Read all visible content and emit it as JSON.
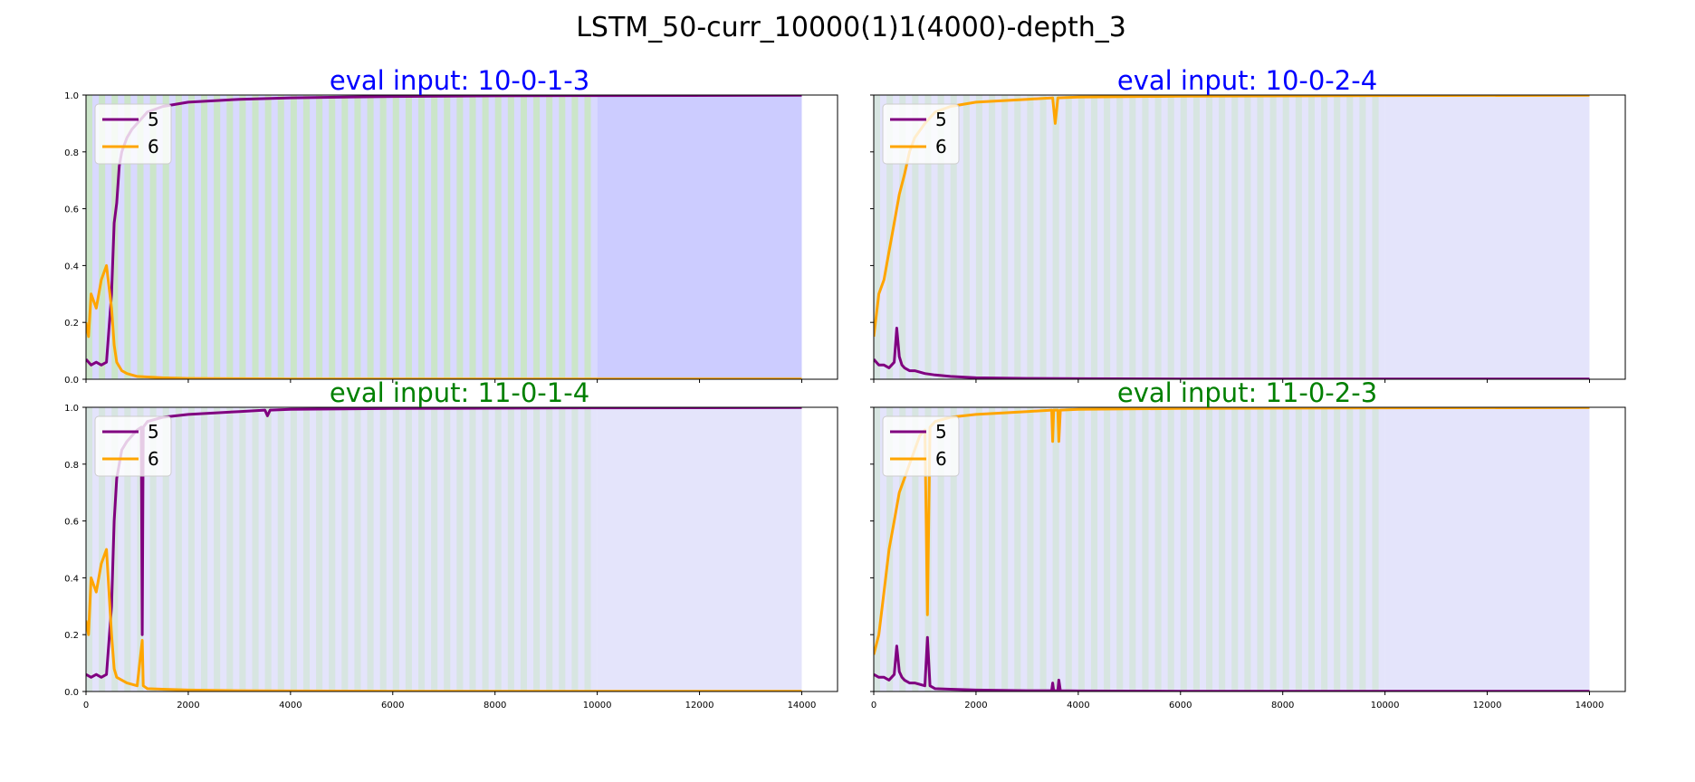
{
  "figure": {
    "suptitle": "LSTM_50-curr_10000(1)1(4000)-depth_3"
  },
  "colors": {
    "series_5": "#800080",
    "series_6": "#FFA500",
    "title_blue": "#0000FF",
    "title_green": "#008000",
    "band_green": "#C8E6C0",
    "band_blue_light": "#E4E4FB",
    "band_blue_strong": "#CCCCFF",
    "band_blue_plain": "#E4E4FB"
  },
  "chart_data": [
    {
      "type": "line",
      "title": "eval input: 10-0-1-3",
      "title_color": "blue",
      "xlim": [
        0,
        14700
      ],
      "ylim": [
        0,
        1.0
      ],
      "x_ticks": [],
      "y_ticks": [
        "0.0",
        "0.2",
        "0.4",
        "0.6",
        "0.8",
        "1.0"
      ],
      "legend_position": "upper left",
      "background": "strong",
      "series": [
        {
          "name": "5",
          "color": "purple",
          "x": [
            0,
            100,
            200,
            300,
            400,
            500,
            550,
            600,
            650,
            700,
            800,
            900,
            1000,
            1100,
            1200,
            1500,
            2000,
            3000,
            4000,
            6000,
            8000,
            10000,
            14000
          ],
          "y": [
            0.07,
            0.05,
            0.06,
            0.05,
            0.06,
            0.3,
            0.55,
            0.62,
            0.75,
            0.8,
            0.85,
            0.88,
            0.9,
            0.92,
            0.94,
            0.96,
            0.975,
            0.985,
            0.99,
            0.995,
            0.997,
            0.998,
            0.999
          ]
        },
        {
          "name": "6",
          "color": "orange",
          "x": [
            0,
            50,
            100,
            200,
            300,
            400,
            500,
            550,
            600,
            700,
            800,
            1000,
            1200,
            1500,
            2000,
            3000,
            4000,
            6000,
            10000,
            14000
          ],
          "y": [
            0.2,
            0.15,
            0.3,
            0.25,
            0.35,
            0.4,
            0.25,
            0.12,
            0.06,
            0.03,
            0.02,
            0.01,
            0.008,
            0.005,
            0.003,
            0.002,
            0.001,
            0.001,
            0.001,
            0.001
          ]
        }
      ]
    },
    {
      "type": "line",
      "title": "eval input: 10-0-2-4",
      "title_color": "blue",
      "xlim": [
        0,
        14700
      ],
      "ylim": [
        0,
        1.0
      ],
      "x_ticks": [],
      "y_ticks": [],
      "legend_position": "upper left",
      "background": "light",
      "series": [
        {
          "name": "5",
          "color": "purple",
          "x": [
            0,
            100,
            200,
            300,
            400,
            450,
            500,
            550,
            600,
            700,
            800,
            1000,
            1200,
            1500,
            2000,
            3000,
            4000,
            6000,
            10000,
            14000
          ],
          "y": [
            0.07,
            0.05,
            0.05,
            0.04,
            0.06,
            0.18,
            0.08,
            0.05,
            0.04,
            0.03,
            0.03,
            0.02,
            0.015,
            0.01,
            0.005,
            0.003,
            0.002,
            0.001,
            0.001,
            0.001
          ]
        },
        {
          "name": "6",
          "color": "orange",
          "x": [
            0,
            100,
            200,
            300,
            400,
            500,
            600,
            700,
            800,
            1000,
            1100,
            1200,
            1500,
            2000,
            3000,
            3500,
            3550,
            3600,
            4000,
            6000,
            10000,
            14000
          ],
          "y": [
            0.15,
            0.3,
            0.35,
            0.45,
            0.55,
            0.65,
            0.72,
            0.8,
            0.85,
            0.9,
            0.92,
            0.94,
            0.96,
            0.975,
            0.985,
            0.99,
            0.9,
            0.99,
            0.993,
            0.996,
            0.998,
            0.999
          ]
        }
      ]
    },
    {
      "type": "line",
      "title": "eval input: 11-0-1-4",
      "title_color": "green",
      "xlim": [
        0,
        14700
      ],
      "ylim": [
        0,
        1.0
      ],
      "x_ticks": [
        "0",
        "2000",
        "4000",
        "6000",
        "8000",
        "10000",
        "12000",
        "14000"
      ],
      "y_ticks": [
        "0.0",
        "0.2",
        "0.4",
        "0.6",
        "0.8",
        "1.0"
      ],
      "legend_position": "upper left",
      "background": "light",
      "series": [
        {
          "name": "5",
          "color": "purple",
          "x": [
            0,
            100,
            200,
            300,
            400,
            500,
            550,
            600,
            650,
            700,
            800,
            900,
            1000,
            1080,
            1100,
            1120,
            1200,
            1500,
            2000,
            3000,
            3500,
            3550,
            3600,
            4000,
            6000,
            10000,
            14000
          ],
          "y": [
            0.06,
            0.05,
            0.06,
            0.05,
            0.06,
            0.3,
            0.6,
            0.75,
            0.8,
            0.85,
            0.88,
            0.9,
            0.92,
            0.93,
            0.2,
            0.93,
            0.95,
            0.965,
            0.975,
            0.985,
            0.99,
            0.97,
            0.99,
            0.993,
            0.996,
            0.998,
            0.999
          ]
        },
        {
          "name": "6",
          "color": "orange",
          "x": [
            0,
            50,
            100,
            200,
            300,
            400,
            500,
            550,
            600,
            700,
            800,
            1000,
            1100,
            1120,
            1200,
            1500,
            2000,
            3000,
            4000,
            6000,
            10000,
            14000
          ],
          "y": [
            0.25,
            0.2,
            0.4,
            0.35,
            0.45,
            0.5,
            0.2,
            0.08,
            0.05,
            0.04,
            0.03,
            0.02,
            0.18,
            0.02,
            0.01,
            0.008,
            0.005,
            0.003,
            0.002,
            0.001,
            0.001,
            0.001
          ]
        }
      ]
    },
    {
      "type": "line",
      "title": "eval input: 11-0-2-3",
      "title_color": "green",
      "xlim": [
        0,
        14700
      ],
      "ylim": [
        0,
        1.0
      ],
      "x_ticks": [
        "0",
        "2000",
        "4000",
        "6000",
        "8000",
        "10000",
        "12000",
        "14000"
      ],
      "y_ticks": [],
      "legend_position": "upper left",
      "background": "light",
      "series": [
        {
          "name": "5",
          "color": "purple",
          "x": [
            0,
            100,
            200,
            300,
            400,
            450,
            500,
            550,
            600,
            700,
            800,
            1000,
            1050,
            1100,
            1200,
            1500,
            2000,
            3000,
            3480,
            3500,
            3520,
            3600,
            3620,
            3650,
            4000,
            6000,
            10000,
            14000
          ],
          "y": [
            0.06,
            0.05,
            0.05,
            0.04,
            0.06,
            0.16,
            0.07,
            0.05,
            0.04,
            0.03,
            0.03,
            0.02,
            0.19,
            0.02,
            0.01,
            0.008,
            0.005,
            0.003,
            0.003,
            0.03,
            0.003,
            0.003,
            0.04,
            0.003,
            0.002,
            0.001,
            0.001,
            0.001
          ]
        },
        {
          "name": "6",
          "color": "orange",
          "x": [
            0,
            100,
            200,
            300,
            400,
            500,
            600,
            700,
            800,
            900,
            1000,
            1050,
            1100,
            1200,
            1500,
            2000,
            3000,
            3480,
            3500,
            3520,
            3600,
            3620,
            3650,
            4000,
            6000,
            10000,
            14000
          ],
          "y": [
            0.13,
            0.2,
            0.35,
            0.5,
            0.6,
            0.7,
            0.75,
            0.8,
            0.85,
            0.9,
            0.92,
            0.27,
            0.93,
            0.95,
            0.965,
            0.975,
            0.985,
            0.99,
            0.88,
            0.99,
            0.99,
            0.88,
            0.99,
            0.993,
            0.996,
            0.998,
            0.999
          ]
        }
      ]
    }
  ]
}
